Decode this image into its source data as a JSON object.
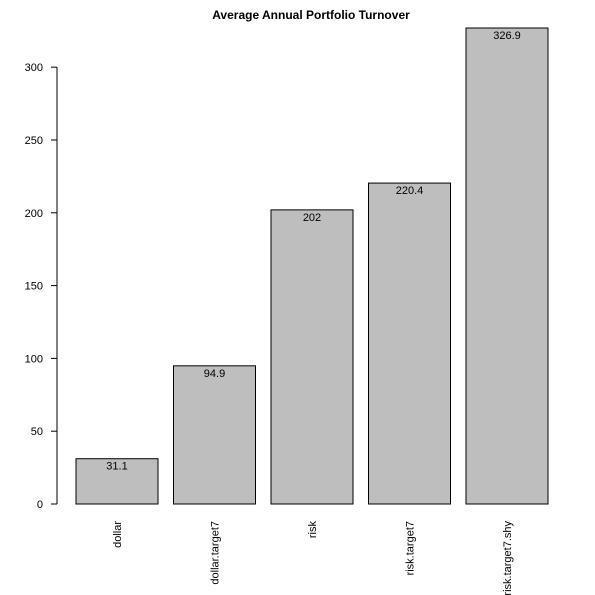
{
  "chart_data": {
    "type": "bar",
    "title": "Average Annual Portfolio Turnover",
    "categories": [
      "dollar",
      "dollar.target7",
      "risk",
      "risk.target7",
      "risk.target7.shy"
    ],
    "values": [
      31.1,
      94.9,
      202,
      220.4,
      326.9
    ],
    "value_labels": [
      "31.1",
      "94.9",
      "202",
      "220.4",
      "326.9"
    ],
    "xlabel": "",
    "ylabel": "",
    "ylim": [
      0,
      326.9
    ],
    "yticks": [
      0,
      50,
      100,
      150,
      200,
      250,
      300
    ],
    "grid": false,
    "legend": "none",
    "bar_color": "#bebebe"
  }
}
